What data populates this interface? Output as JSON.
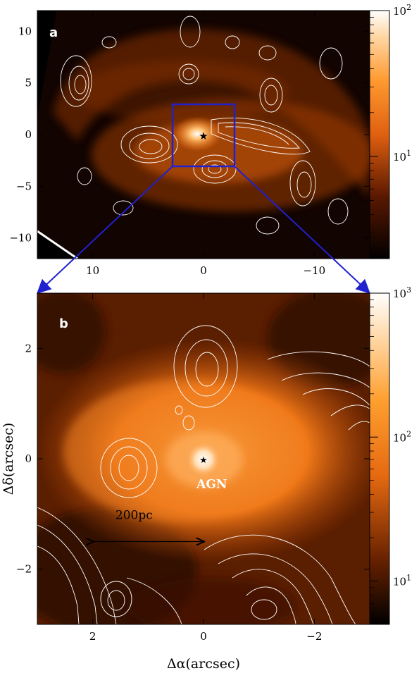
{
  "chart_data": [
    {
      "type": "heatmap",
      "panel_label": "a",
      "xlim": [
        15,
        -15
      ],
      "ylim": [
        -12,
        12
      ],
      "x_ticks": [
        {
          "value": 10,
          "label": "10"
        },
        {
          "value": 0,
          "label": "0"
        },
        {
          "value": -10,
          "label": "−10"
        }
      ],
      "y_ticks": [
        {
          "value": 10,
          "label": "10"
        },
        {
          "value": 5,
          "label": "5"
        },
        {
          "value": 0,
          "label": "0"
        },
        {
          "value": -5,
          "label": "−5"
        },
        {
          "value": -10,
          "label": "−10"
        }
      ],
      "colorbar": {
        "scale": "log",
        "range": [
          2,
          100
        ],
        "ticks": [
          {
            "base": "10",
            "exp": "2",
            "value": 100
          },
          {
            "base": "10",
            "exp": "1",
            "value": 10
          }
        ]
      },
      "zoom_box": {
        "x": [
          3,
          -3
        ],
        "y": [
          -3,
          3
        ],
        "color": "#2020d0"
      },
      "center_marker": {
        "x": 0,
        "y": 0,
        "symbol": "★"
      }
    },
    {
      "type": "heatmap",
      "panel_label": "b",
      "xlim": [
        3,
        -3
      ],
      "ylim": [
        -3,
        3
      ],
      "xlabel": "Δα(arcsec)",
      "ylabel": "Δδ(arcsec)",
      "x_ticks": [
        {
          "value": 2,
          "label": "2"
        },
        {
          "value": 0,
          "label": "0"
        },
        {
          "value": -2,
          "label": "−2"
        }
      ],
      "y_ticks": [
        {
          "value": 2,
          "label": "2"
        },
        {
          "value": 0,
          "label": "0"
        },
        {
          "value": -2,
          "label": "−2"
        }
      ],
      "colorbar": {
        "scale": "log",
        "range": [
          5,
          1000
        ],
        "ticks": [
          {
            "base": "10",
            "exp": "3",
            "value": 1000
          },
          {
            "base": "10",
            "exp": "2",
            "value": 100
          },
          {
            "base": "10",
            "exp": "1",
            "value": 10
          }
        ]
      },
      "annotations": [
        {
          "text": "AGN",
          "x": -0.15,
          "y": -0.45
        }
      ],
      "scale_bar": {
        "label": "200pc",
        "x_start": 2,
        "x_end": 0,
        "y": -1.5
      },
      "center_marker": {
        "x": 0,
        "y": 0,
        "symbol": "★"
      }
    }
  ],
  "colors": {
    "zoom_box": "#2020d0",
    "contours": "#ffffff",
    "cmap_low": "#000000",
    "cmap_mid": "#ff8000",
    "cmap_high": "#ffffff"
  }
}
